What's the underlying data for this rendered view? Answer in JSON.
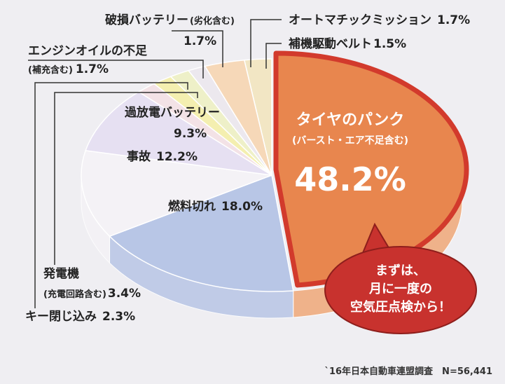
{
  "chart_data": {
    "type": "pie",
    "title": "",
    "slices": [
      {
        "name": "タイヤのパンク",
        "sub": "(バースト・エア不足含む)",
        "value": 48.2,
        "value_label": "48.2%",
        "color": "#f0a878"
      },
      {
        "name": "燃料切れ",
        "value": 18.0,
        "value_label": "18.0%",
        "color": "#b8c6e6"
      },
      {
        "name": "事故",
        "value": 12.2,
        "value_label": "12.2%",
        "color": "#f4f2f6"
      },
      {
        "name": "過放電バッテリー",
        "value": 9.3,
        "value_label": "9.3%",
        "color": "#e6e0f2"
      },
      {
        "name": "エンジンオイルの不足",
        "sub": "(補充含む)",
        "value": 1.7,
        "value_label": "1.7%",
        "color": "#f3e2e6"
      },
      {
        "name": "破損バッテリー",
        "sub": "(劣化含む)",
        "value": 1.7,
        "value_label": "1.7%",
        "color": "#f4efb0"
      },
      {
        "name": "オートマチックミッション",
        "value": 1.7,
        "value_label": "1.7%",
        "color": "#eef0c8"
      },
      {
        "name": "補機駆動ベルト",
        "value": 1.5,
        "value_label": "1.5%",
        "color": "#ece8ee"
      },
      {
        "name": "発電機",
        "sub": "(充電回路含む)",
        "value": 3.4,
        "value_label": "3.4%",
        "color": "#f6d8b8"
      },
      {
        "name": "キー閉じ込み",
        "value": 2.3,
        "value_label": "2.3%",
        "color": "#f2e6c4"
      }
    ],
    "highlight": "タイヤのパンク",
    "callout": [
      "まずは、",
      "月に一度の",
      "空気圧点検から！"
    ],
    "source": "`16年日本自動車連盟調査　N=56,441"
  }
}
